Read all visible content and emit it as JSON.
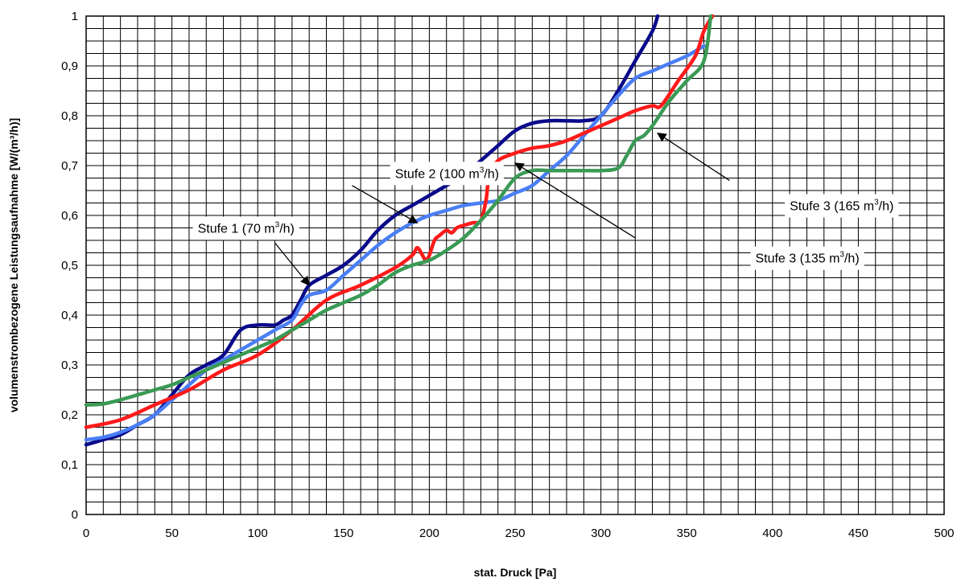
{
  "chart_data": {
    "type": "line",
    "title": "",
    "xlabel": "stat. Druck [Pa]",
    "ylabel": "volumenstrombezogene Leistungsaufnahme [W/(m³/h)]",
    "xlim": [
      0,
      500
    ],
    "ylim": [
      0,
      1
    ],
    "x_major_step": 50,
    "y_major_step": 0.1,
    "x_minor_step": 10,
    "y_minor_step": 0.025,
    "grid": true,
    "x_tick_labels": [
      "0",
      "50",
      "100",
      "150",
      "200",
      "250",
      "300",
      "350",
      "400",
      "450",
      "500"
    ],
    "y_tick_labels": [
      "0",
      "0,1",
      "0,2",
      "0,3",
      "0,4",
      "0,5",
      "0,6",
      "0,7",
      "0,8",
      "0,9",
      "1"
    ],
    "series": [
      {
        "color": "#0a0a8a",
        "x": [
          0,
          10,
          20,
          30,
          40,
          50,
          60,
          70,
          80,
          90,
          100,
          110,
          115,
          120,
          125,
          130,
          140,
          150,
          160,
          170,
          180,
          190,
          200,
          210,
          220,
          230,
          240,
          250,
          260,
          270,
          280,
          290,
          300,
          310,
          320,
          330,
          333
        ],
        "y": [
          0.14,
          0.15,
          0.16,
          0.18,
          0.2,
          0.24,
          0.28,
          0.3,
          0.32,
          0.37,
          0.38,
          0.38,
          0.39,
          0.4,
          0.43,
          0.46,
          0.48,
          0.5,
          0.53,
          0.57,
          0.6,
          0.62,
          0.64,
          0.66,
          0.68,
          0.71,
          0.74,
          0.77,
          0.785,
          0.79,
          0.79,
          0.79,
          0.8,
          0.85,
          0.91,
          0.97,
          1.0
        ]
      },
      {
        "color": "#4a7ef5",
        "x": [
          0,
          10,
          20,
          30,
          40,
          50,
          60,
          70,
          80,
          90,
          100,
          110,
          120,
          125,
          130,
          140,
          150,
          160,
          170,
          180,
          190,
          200,
          210,
          220,
          230,
          240,
          250,
          260,
          270,
          280,
          290,
          300,
          310,
          320,
          330,
          340,
          350,
          360
        ],
        "y": [
          0.15,
          0.155,
          0.165,
          0.18,
          0.2,
          0.23,
          0.26,
          0.29,
          0.31,
          0.33,
          0.35,
          0.37,
          0.39,
          0.42,
          0.44,
          0.45,
          0.48,
          0.51,
          0.54,
          0.565,
          0.585,
          0.6,
          0.61,
          0.62,
          0.625,
          0.63,
          0.645,
          0.66,
          0.69,
          0.72,
          0.76,
          0.8,
          0.84,
          0.875,
          0.89,
          0.905,
          0.92,
          0.94
        ]
      },
      {
        "color": "#ff1a1a",
        "x": [
          0,
          20,
          40,
          60,
          80,
          100,
          120,
          140,
          160,
          180,
          190,
          193,
          196,
          198,
          200,
          203,
          206,
          210,
          213,
          216,
          220,
          225,
          230,
          233,
          235,
          240,
          250,
          260,
          270,
          280,
          290,
          300,
          310,
          320,
          330,
          335,
          345,
          355,
          360,
          365
        ],
        "y": [
          0.175,
          0.19,
          0.22,
          0.25,
          0.29,
          0.32,
          0.37,
          0.43,
          0.46,
          0.495,
          0.52,
          0.535,
          0.52,
          0.51,
          0.52,
          0.55,
          0.56,
          0.57,
          0.565,
          0.575,
          0.58,
          0.585,
          0.59,
          0.63,
          0.68,
          0.71,
          0.725,
          0.735,
          0.74,
          0.75,
          0.765,
          0.78,
          0.795,
          0.81,
          0.82,
          0.82,
          0.87,
          0.92,
          0.97,
          1.0
        ]
      },
      {
        "color": "#3a9a55",
        "x": [
          0,
          10,
          20,
          30,
          40,
          50,
          60,
          70,
          80,
          90,
          100,
          110,
          120,
          130,
          140,
          150,
          160,
          170,
          180,
          190,
          200,
          210,
          220,
          230,
          240,
          250,
          260,
          270,
          280,
          290,
          300,
          310,
          315,
          320,
          325,
          330,
          340,
          350,
          360,
          364
        ],
        "y": [
          0.22,
          0.222,
          0.23,
          0.24,
          0.25,
          0.26,
          0.275,
          0.29,
          0.305,
          0.32,
          0.335,
          0.35,
          0.37,
          0.39,
          0.41,
          0.425,
          0.44,
          0.46,
          0.485,
          0.5,
          0.51,
          0.53,
          0.555,
          0.59,
          0.63,
          0.675,
          0.69,
          0.69,
          0.69,
          0.69,
          0.69,
          0.695,
          0.72,
          0.75,
          0.76,
          0.78,
          0.83,
          0.87,
          0.91,
          1.0
        ]
      }
    ],
    "annotations": [
      {
        "label_base": "Stufe 1 (70 m",
        "label_sup": "3",
        "label_end": "/h)",
        "text_x": 65,
        "text_y": 0.575,
        "arrow_from": [
          110,
          0.545
        ],
        "arrow_to": [
          130,
          0.46
        ]
      },
      {
        "label_base": "Stufe 2 (100 m",
        "label_sup": "3",
        "label_end": "/h)",
        "text_x": 180,
        "text_y": 0.685,
        "arrow_from": [
          155,
          0.66
        ],
        "arrow_to": [
          193,
          0.585
        ]
      },
      {
        "label_base": "Stufe 3 (135 m",
        "label_sup": "3",
        "label_end": "/h)",
        "text_x": 390,
        "text_y": 0.515,
        "arrow_from": [
          320,
          0.555
        ],
        "arrow_to": [
          250,
          0.705
        ]
      },
      {
        "label_base": "Stufe 3 (165 m",
        "label_sup": "3",
        "label_end": "/h)",
        "text_x": 410,
        "text_y": 0.62,
        "arrow_from": [
          375,
          0.67
        ],
        "arrow_to": [
          333,
          0.765
        ]
      }
    ]
  }
}
